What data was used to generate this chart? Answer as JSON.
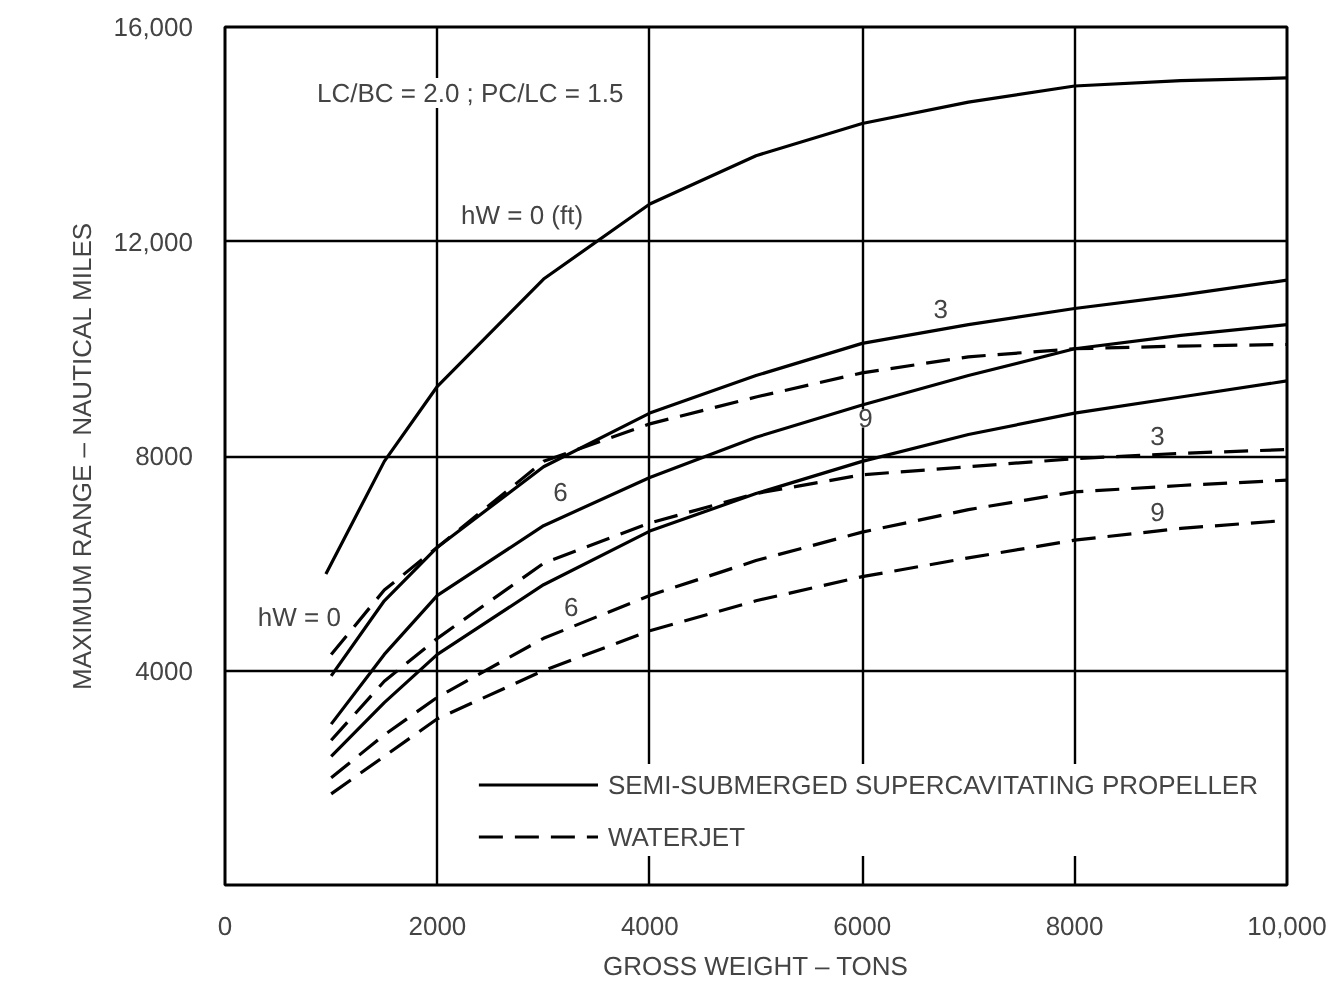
{
  "chart_data": {
    "type": "line",
    "xlabel": "GROSS WEIGHT – TONS",
    "ylabel": "MAXIMUM RANGE – NAUTICAL MILES",
    "xlim": [
      0,
      10000
    ],
    "ylim": [
      0,
      16000
    ],
    "xticks": [
      0,
      2000,
      4000,
      6000,
      8000,
      {
        "value": 10000,
        "label": "10,000"
      }
    ],
    "yticks": [
      4000,
      8000,
      {
        "value": 12000,
        "label": "12,000"
      },
      {
        "value": 16000,
        "label": "16,000"
      }
    ],
    "grid": true,
    "legend": "bottom right",
    "marker": "none",
    "x": [
      1000,
      1500,
      2000,
      3000,
      4000,
      5000,
      6000,
      7000,
      8000,
      9000,
      10000
    ],
    "series": [
      {
        "name": "SEMI-SUBMERGED SUPERCAVITATING PROPELLER",
        "color": "#000000",
        "line_style": "solid",
        "x": [
          950,
          1500,
          2000,
          3000,
          4000,
          5000,
          6000,
          7000,
          8000,
          9000,
          10000
        ],
        "values": [
          5800,
          7900,
          9300,
          11300,
          12700,
          13600,
          14200,
          14600,
          14900,
          15000,
          15050
        ]
      },
      {
        "color": "#000000",
        "line_style": "solid",
        "values": [
          3900,
          5300,
          6300,
          7800,
          8800,
          9500,
          10100,
          10450,
          10750,
          11000,
          11280
        ]
      },
      {
        "color": "#000000",
        "line_style": "solid",
        "values": [
          3000,
          4300,
          5400,
          6700,
          7600,
          8350,
          8950,
          9500,
          10000,
          10250,
          10450
        ]
      },
      {
        "color": "#000000",
        "line_style": "solid",
        "values": [
          2400,
          3400,
          4300,
          5600,
          6600,
          7300,
          7900,
          8400,
          8800,
          9100,
          9400
        ]
      },
      {
        "name": "WATERJET",
        "color": "#000000",
        "line_style": "dashed",
        "values": [
          4300,
          5500,
          6300,
          7900,
          8600,
          9100,
          9550,
          9850,
          10000,
          10050,
          10080
        ]
      },
      {
        "color": "#000000",
        "line_style": "dashed",
        "values": [
          2700,
          3800,
          4600,
          6000,
          6750,
          7300,
          7650,
          7800,
          7950,
          8050,
          8120
        ]
      },
      {
        "color": "#000000",
        "line_style": "dashed",
        "values": [
          2000,
          2800,
          3500,
          4600,
          5400,
          6050,
          6580,
          7000,
          7330,
          7450,
          7550
        ]
      },
      {
        "color": "#000000",
        "line_style": "dashed",
        "values": [
          1700,
          2400,
          3100,
          4000,
          4740,
          5300,
          5750,
          6100,
          6430,
          6650,
          6800
        ]
      }
    ],
    "annotations": [
      "LC/BC = 2.0 ; PC/LC = 1.5",
      "hW = 0 (ft)",
      {
        "text": "hW = 0",
        "x": 700,
        "y": 5000
      },
      {
        "text": "3",
        "x": 6740,
        "y": 10750
      },
      {
        "text": "6",
        "x": 3160,
        "y": 7330
      },
      {
        "text": "9",
        "x": 6030,
        "y": 8700
      },
      {
        "text": "6",
        "x": 3260,
        "y": 5190
      },
      {
        "text": "3",
        "x": 8780,
        "y": 8380
      },
      {
        "text": "9",
        "x": 8780,
        "y": 6950
      }
    ]
  }
}
